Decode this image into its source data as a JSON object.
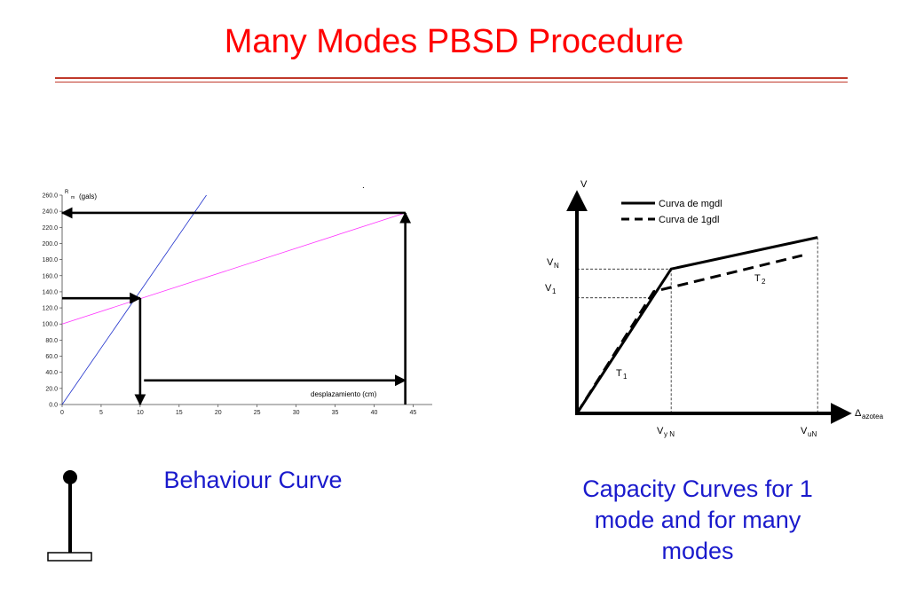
{
  "slide": {
    "title": "Many Modes PBSD Procedure",
    "caption_left": "Behaviour Curve",
    "caption_right": "Capacity Curves for 1 mode and for many modes"
  },
  "colors": {
    "title": "#ff0000",
    "caption": "#1a1acc",
    "blue_line": "#2233cc",
    "pink_line": "#ff33ff"
  },
  "icons": {
    "pendulum": "lollipop-structure-icon"
  },
  "chart_data": [
    {
      "type": "line",
      "title": "",
      "ylabel_sup": "R",
      "ylabel_sub": "m",
      "ylabel_rest": "(gals)",
      "xlabel": "desplazamiento (cm)",
      "xlim": [
        0,
        47
      ],
      "ylim": [
        0,
        260
      ],
      "x_ticks": [
        "0",
        "5",
        "10",
        "15",
        "20",
        "25",
        "30",
        "35",
        "40",
        "45"
      ],
      "y_ticks": [
        "0.0",
        "20.0",
        "40.0",
        "60.0",
        "80.0",
        "100.0",
        "120.0",
        "140.0",
        "160.0",
        "180.0",
        "200.0",
        "220.0",
        "240.0",
        "260.0"
      ],
      "series": [
        {
          "color": "#2233cc",
          "x": [
            0,
            18.5
          ],
          "y": [
            0,
            260
          ]
        },
        {
          "color": "#ff33ff",
          "x": [
            0,
            44
          ],
          "y": [
            100,
            238
          ]
        }
      ],
      "intersection": {
        "x": 10,
        "y": 132
      },
      "arrows": [
        {
          "from": [
            0,
            132
          ],
          "to": [
            10,
            132
          ]
        },
        {
          "from": [
            10,
            132
          ],
          "to": [
            10,
            0
          ]
        },
        {
          "from": [
            10.5,
            30
          ],
          "to": [
            44,
            30
          ]
        },
        {
          "from": [
            44,
            0
          ],
          "to": [
            44,
            238
          ]
        },
        {
          "from": [
            44,
            238
          ],
          "to": [
            0,
            238
          ]
        }
      ],
      "marker_dot": "."
    },
    {
      "type": "line",
      "title": "",
      "ylabel": "V",
      "xlabel_symbol": "Δ",
      "xlabel_sub": "azotea",
      "legend": [
        {
          "label": "Curva de mgdl",
          "style": "solid"
        },
        {
          "label": "Curva de 1gdl",
          "style": "dashed"
        }
      ],
      "y_labels": [
        {
          "main": "V",
          "sub": "N"
        },
        {
          "main": "V",
          "sub": "1"
        }
      ],
      "x_labels": [
        {
          "main": "V",
          "sub": "y N"
        },
        {
          "main": "V",
          "sub": "uN"
        }
      ],
      "annotations": [
        {
          "main": "T",
          "sub": "1"
        },
        {
          "main": "T",
          "sub": "2"
        }
      ],
      "series": [
        {
          "name": "Curva de mgdl",
          "style": "solid",
          "x": [
            0,
            0.92,
            2.35
          ],
          "y": [
            0,
            1.6,
            1.95
          ]
        },
        {
          "name": "Curva de 1gdl",
          "style": "dashed",
          "x": [
            0,
            0.75,
            2.2
          ],
          "y": [
            0,
            1.35,
            1.75
          ]
        }
      ],
      "xlim": [
        0,
        2.6
      ],
      "ylim": [
        0,
        2.3
      ]
    }
  ]
}
